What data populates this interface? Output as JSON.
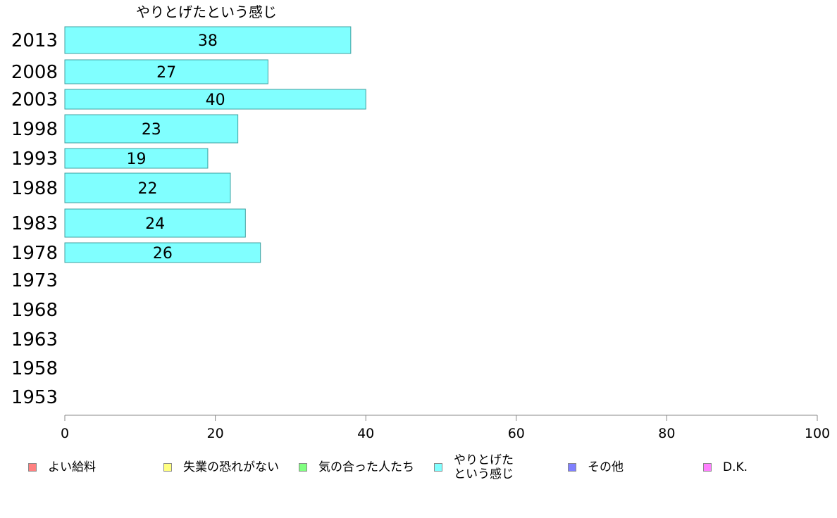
{
  "chart_data": {
    "type": "bar",
    "orientation": "horizontal",
    "title": "やりとげたという感じ",
    "categories": [
      "2013",
      "2008",
      "2003",
      "1998",
      "1993",
      "1988",
      "1983",
      "1978",
      "1973",
      "1968",
      "1963",
      "1958",
      "1953"
    ],
    "series": [
      {
        "name": "やりとげた\nという感じ",
        "values": [
          38,
          27,
          40,
          23,
          19,
          22,
          24,
          26,
          null,
          null,
          null,
          null,
          null
        ]
      }
    ],
    "xlim": [
      0,
      100
    ],
    "xticks": [
      0,
      20,
      40,
      60,
      80,
      100
    ],
    "bar_color": "#80ffff",
    "bar_border_color": "#40a0a0",
    "grid": false
  },
  "legend": {
    "items": [
      {
        "label": "よい給料",
        "color": "#ff8080"
      },
      {
        "label": "失業の恐れがない",
        "color": "#ffff80"
      },
      {
        "label": "気の合った人たち",
        "color": "#80ff80"
      },
      {
        "label": "やりとげた\nという感じ",
        "color": "#80ffff"
      },
      {
        "label": "その他",
        "color": "#8080ff"
      },
      {
        "label": "D.K.",
        "color": "#ff80ff"
      }
    ]
  }
}
